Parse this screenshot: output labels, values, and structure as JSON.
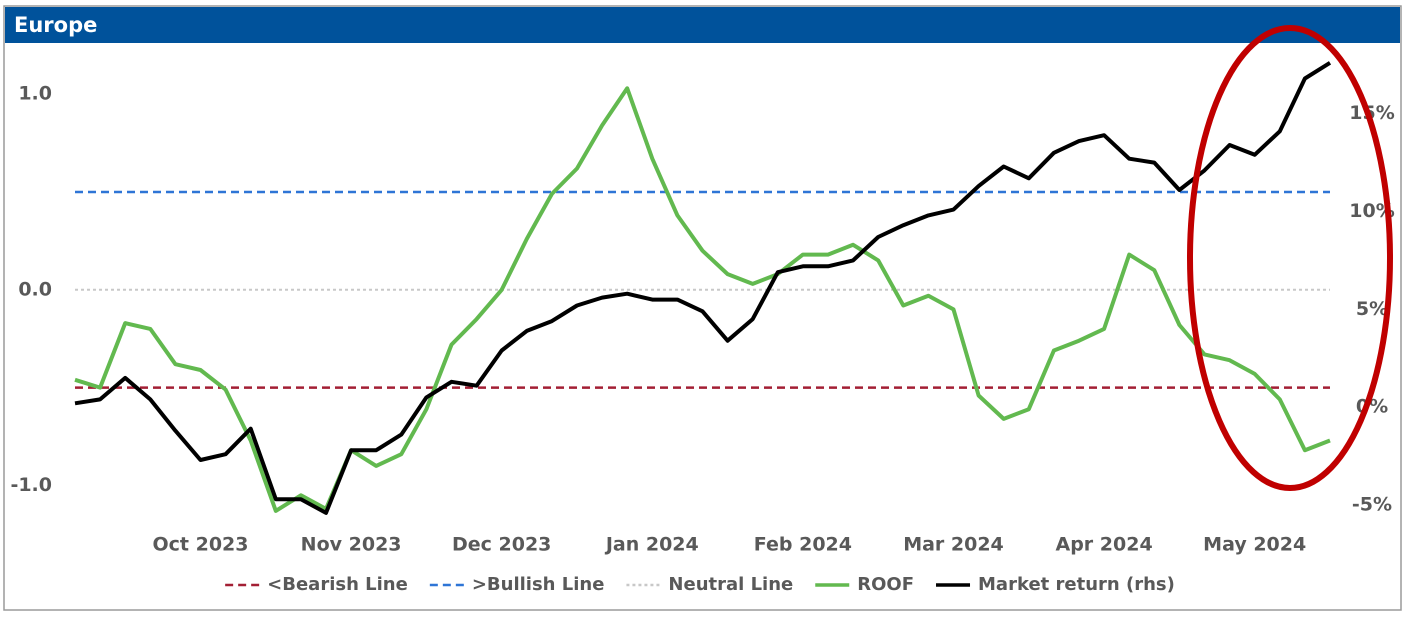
{
  "chart_data": {
    "type": "line",
    "title": "Europe",
    "categories": [
      null,
      null,
      null,
      null,
      null,
      "Oct 2023",
      null,
      null,
      null,
      null,
      null,
      "Nov 2023",
      null,
      null,
      null,
      null,
      null,
      "Dec 2023",
      null,
      null,
      null,
      null,
      null,
      "Jan 2024",
      null,
      null,
      null,
      null,
      null,
      "Feb 2024",
      null,
      null,
      null,
      null,
      null,
      "Mar 2024",
      null,
      null,
      null,
      null,
      null,
      "Apr 2024",
      null,
      null,
      null,
      null,
      null,
      "May 2024",
      null,
      null,
      null
    ],
    "series": [
      {
        "name": "<Bearish Line",
        "color": "#a31f34",
        "hline": -0.5,
        "dash": true
      },
      {
        "name": ">Bullish Line",
        "color": "#2e75d6",
        "hline": 0.5,
        "dash": true
      },
      {
        "name": "Neutral Line",
        "color": "#c8c8c8",
        "hline": 0,
        "dash": true
      },
      {
        "name": "ROOF",
        "color": "#62b94f",
        "values": [
          -0.46,
          -0.5,
          -0.17,
          -0.2,
          -0.38,
          -0.41,
          -0.51,
          -0.77,
          -1.13,
          -1.05,
          -1.12,
          -0.82,
          -0.9,
          -0.84,
          -0.61,
          -0.28,
          -0.15,
          0.0,
          0.26,
          0.49,
          0.62,
          0.84,
          1.03,
          0.67,
          0.38,
          0.2,
          0.08,
          0.03,
          0.08,
          0.18,
          0.18,
          0.23,
          0.15,
          -0.08,
          -0.03,
          -0.1,
          -0.54,
          -0.66,
          -0.61,
          -0.31,
          -0.26,
          -0.2,
          0.18,
          0.1,
          -0.18,
          -0.33,
          -0.36,
          -0.43,
          -0.56,
          -0.82,
          -0.77
        ]
      },
      {
        "name": "Market return (rhs)",
        "color": "#000000",
        "axis": "y2",
        "values": [
          0.2,
          0.4,
          1.5,
          0.4,
          -1.2,
          -2.7,
          -2.4,
          -1.1,
          -4.7,
          -4.7,
          -5.4,
          -2.2,
          -2.2,
          -1.4,
          0.5,
          1.3,
          1.1,
          2.9,
          3.9,
          4.4,
          5.2,
          5.6,
          5.8,
          5.5,
          5.5,
          4.9,
          3.4,
          4.5,
          6.9,
          7.2,
          7.2,
          7.5,
          8.7,
          9.3,
          9.8,
          10.1,
          11.3,
          12.3,
          11.7,
          13.0,
          13.6,
          13.9,
          12.7,
          12.5,
          11.1,
          12.1,
          13.4,
          12.9,
          14.1,
          16.8,
          17.6
        ]
      }
    ],
    "ylim": [
      -1.2,
      1.2
    ],
    "yticks": [
      {
        "value": -1,
        "label": "-1.0"
      },
      {
        "value": 0,
        "label": "0.0"
      },
      {
        "value": 1,
        "label": "1.0"
      }
    ],
    "y2lim": [
      -6,
      18
    ],
    "y2ticks": [
      {
        "value": -5,
        "label": "-5%"
      },
      {
        "value": 0,
        "label": "0%"
      },
      {
        "value": 5,
        "label": "5%"
      },
      {
        "value": 10,
        "label": "10%"
      },
      {
        "value": 15,
        "label": "15%"
      }
    ],
    "legend": "bottom"
  }
}
